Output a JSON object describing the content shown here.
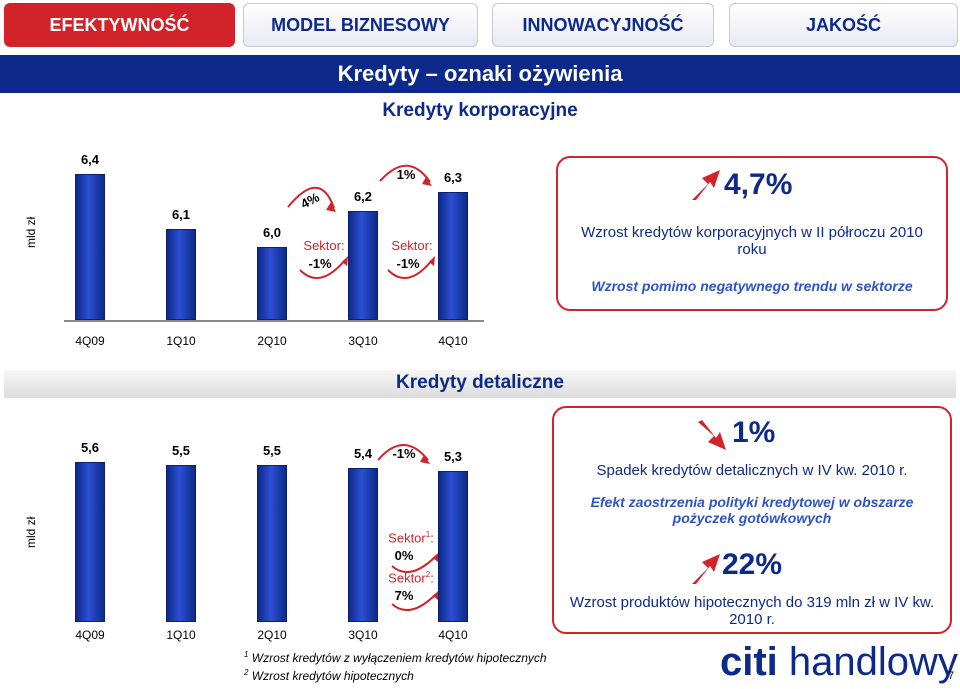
{
  "tabs": [
    {
      "label": "EFEKTYWNOŚĆ",
      "active": true
    },
    {
      "label": "MODEL BIZNESOWY",
      "active": false
    },
    {
      "label": "INNOWACYJNOŚĆ",
      "active": false
    },
    {
      "label": "JAKOŚĆ",
      "active": false
    }
  ],
  "page_title": "Kredyty – oznaki ożywienia",
  "corporate": {
    "title": "Kredyty korporacyjne",
    "ylabel": "mld zł",
    "sector_label": "Sektor:",
    "sector1_value": "-1%",
    "sector2_value": "-1%",
    "growth1": "4%",
    "growth2": "1%",
    "callout": {
      "value": "4,7%",
      "text": "Wzrost kredytów korporacyjnych w II półroczu 2010 roku",
      "italic": "Wzrost pomimo negatywnego trendu w sektorze"
    }
  },
  "retail": {
    "title": "Kredyty detaliczne",
    "ylabel": "mld zł",
    "growth": "-1%",
    "sector_label": "Sektor",
    "sector1_value": "0%",
    "sector2_value": "7%",
    "sup1": "1",
    "sup2": "2",
    "colon": ":",
    "callout1": {
      "value": "1%",
      "text": "Spadek kredytów detalicznych w IV kw. 2010 r.",
      "italic": "Efekt zaostrzenia polityki kredytowej w obszarze pożyczek gotówkowych"
    },
    "callout2": {
      "value": "22%",
      "text": "Wzrost produktów hipotecznych do 319 mln zł w IV kw. 2010 r."
    }
  },
  "footnotes": [
    {
      "num": "1",
      "text": "Wzrost kredytów z wyłączeniem kredytów hipotecznych"
    },
    {
      "num": "2",
      "text": "Wzrost kredytów hipotecznych"
    }
  ],
  "logo": {
    "citi": "citi",
    "handlowy": "handlowy"
  },
  "page_number": "7",
  "colors": {
    "brand_blue": "#0d2a8a",
    "brand_red": "#d2232a"
  },
  "chart_data": [
    {
      "type": "bar",
      "categories": [
        "4Q09",
        "1Q10",
        "2Q10",
        "3Q10",
        "4Q10"
      ],
      "values": [
        6.4,
        6.1,
        6.0,
        6.2,
        6.3
      ],
      "value_labels": [
        "6,4",
        "6,1",
        "6,0",
        "6,2",
        "6,3"
      ],
      "ylabel": "mld zł",
      "ylim": [
        5.6,
        6.45
      ]
    },
    {
      "type": "bar",
      "categories": [
        "4Q09",
        "1Q10",
        "2Q10",
        "3Q10",
        "4Q10"
      ],
      "values": [
        5.6,
        5.5,
        5.5,
        5.4,
        5.3
      ],
      "value_labels": [
        "5,6",
        "5,5",
        "5,5",
        "5,4",
        "5,3"
      ],
      "ylabel": "mld zł",
      "ylim": [
        0,
        5.6
      ]
    }
  ]
}
